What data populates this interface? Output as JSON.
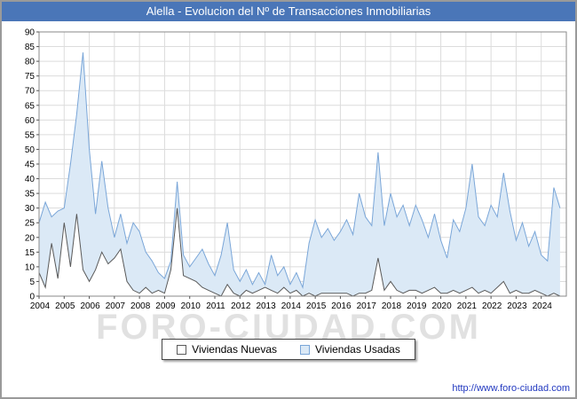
{
  "header": {
    "title": "Alella - Evolucion del Nº de Transacciones Inmobiliarias",
    "bg_color": "#4a76b8"
  },
  "watermark": {
    "text": "FORO-CIUDAD.COM"
  },
  "footer": {
    "url": "http://www.foro-ciudad.com"
  },
  "legend": {
    "items": [
      {
        "label": "Viviendas Nuevas",
        "fill": "#ffffff",
        "stroke": "#5a5a5a"
      },
      {
        "label": "Viviendas Usadas",
        "fill": "#dbe9f6",
        "stroke": "#7aa6d8"
      }
    ]
  },
  "chart_data": {
    "type": "area",
    "title": "Alella - Evolucion del Nº de Transacciones Inmobiliarias",
    "xlabel": "",
    "ylabel": "",
    "xlim": [
      2004,
      2025
    ],
    "ylim": [
      0,
      90
    ],
    "y_tick_step": 5,
    "x_ticks": [
      2004,
      2005,
      2006,
      2007,
      2008,
      2009,
      2010,
      2011,
      2012,
      2013,
      2014,
      2015,
      2016,
      2017,
      2018,
      2019,
      2020,
      2021,
      2022,
      2023,
      2024
    ],
    "x_step": 0.25,
    "grid": true,
    "legend_position": "bottom",
    "series": [
      {
        "name": "Viviendas Usadas",
        "fill": "#dbe9f6",
        "stroke": "#7aa6d8",
        "values": [
          25,
          32,
          27,
          29,
          30,
          45,
          62,
          83,
          50,
          28,
          46,
          30,
          20,
          28,
          18,
          25,
          22,
          15,
          12,
          8,
          6,
          12,
          39,
          14,
          10,
          13,
          16,
          11,
          7,
          14,
          25,
          9,
          5,
          9,
          4,
          8,
          4,
          14,
          7,
          10,
          4,
          8,
          3,
          18,
          26,
          20,
          23,
          19,
          22,
          26,
          21,
          35,
          27,
          24,
          49,
          24,
          35,
          27,
          31,
          24,
          31,
          26,
          20,
          28,
          19,
          13,
          26,
          22,
          30,
          45,
          27,
          24,
          31,
          27,
          42,
          29,
          19,
          25,
          17,
          22,
          14,
          12,
          37,
          30
        ]
      },
      {
        "name": "Viviendas Nuevas",
        "fill": "#ffffff",
        "stroke": "#5a5a5a",
        "values": [
          8,
          3,
          18,
          6,
          25,
          10,
          28,
          9,
          5,
          9,
          15,
          11,
          13,
          16,
          5,
          2,
          1,
          3,
          1,
          2,
          1,
          9,
          30,
          7,
          6,
          5,
          3,
          2,
          1,
          0,
          4,
          1,
          0,
          2,
          1,
          2,
          3,
          2,
          1,
          3,
          1,
          2,
          0,
          1,
          0,
          1,
          1,
          1,
          1,
          1,
          0,
          1,
          1,
          2,
          13,
          2,
          5,
          2,
          1,
          2,
          2,
          1,
          2,
          3,
          1,
          1,
          2,
          1,
          2,
          3,
          1,
          2,
          1,
          3,
          5,
          1,
          2,
          1,
          1,
          2,
          1,
          0,
          1,
          0
        ]
      }
    ]
  }
}
